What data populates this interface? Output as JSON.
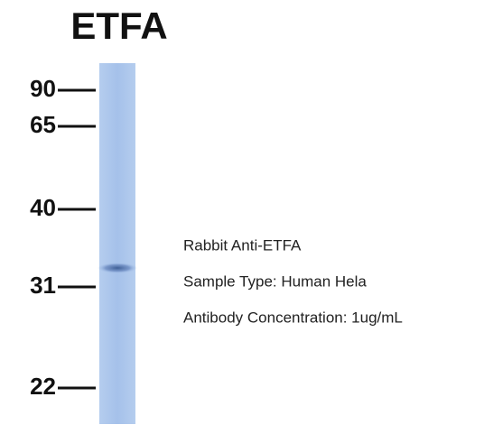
{
  "title": "ETFA",
  "markers": [
    "90",
    "65",
    "40",
    "31",
    "22"
  ],
  "notes": [
    "Rabbit Anti-ETFA",
    "Sample Type: Human Hela",
    "Antibody Concentration: 1ug/mL"
  ]
}
